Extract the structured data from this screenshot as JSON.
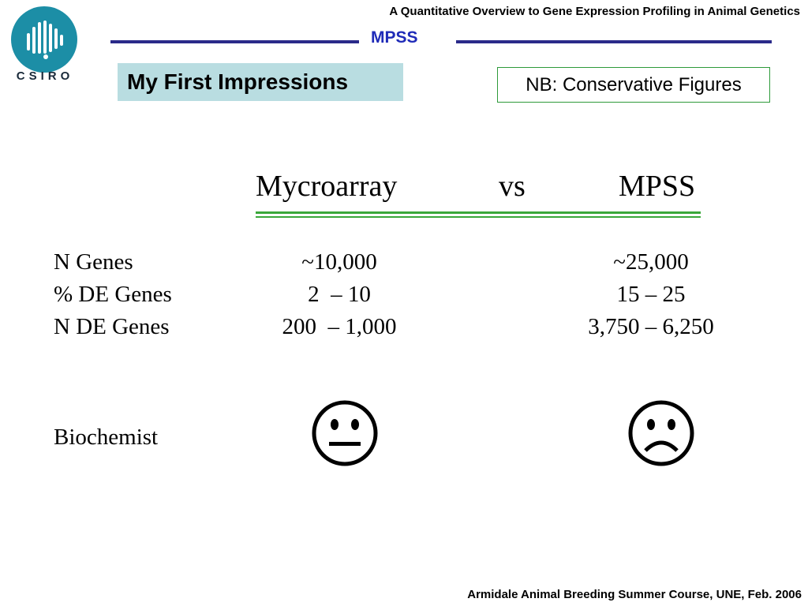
{
  "header": {
    "title": "A Quantitative Overview to Gene Expression Profiling in Animal Genetics",
    "section": "MPSS",
    "logo_text": "CSIRO"
  },
  "slide": {
    "heading": "My First Impressions",
    "note": "NB: Conservative Figures",
    "columns": {
      "left": "Mycroarray",
      "middle": "vs",
      "right": "MPSS"
    },
    "rows": [
      {
        "label": "N Genes",
        "microarray": "~10,000",
        "mpss": "~25,000"
      },
      {
        "label": "% DE Genes",
        "microarray": "2  – 10",
        "mpss": "15 – 25"
      },
      {
        "label": "N DE Genes",
        "microarray": "200  – 1,000",
        "mpss": "3,750 – 6,250"
      }
    ],
    "biochemist": {
      "label": "Biochemist",
      "microarray_face": "neutral-face-icon",
      "mpss_face": "sad-face-icon"
    }
  },
  "footer": {
    "text": "Armidale Animal Breeding Summer Course, UNE, Feb. 2006"
  },
  "colors": {
    "logo": "#1c8ea6",
    "header_rule": "#2a2a8a",
    "section_label": "#1f2bb8",
    "heading_bg": "#b9dde1",
    "note_border": "#2e9a3a",
    "green_rule": "#3aa83a"
  }
}
